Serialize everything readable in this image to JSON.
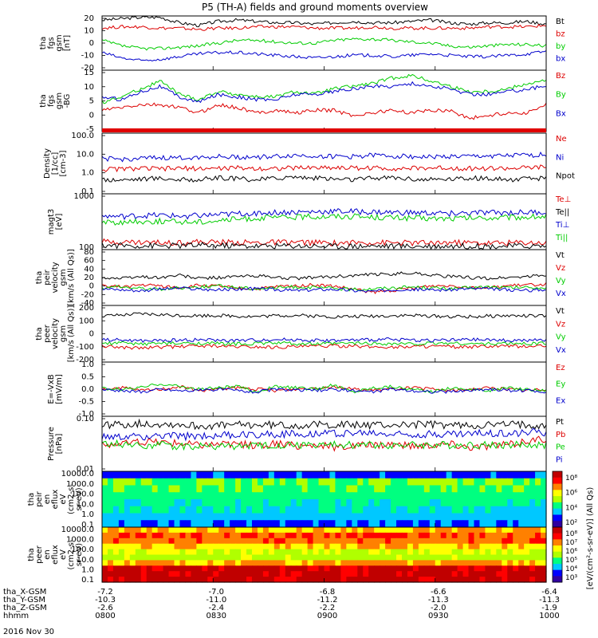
{
  "title": "P5 (TH-A) fields and ground moments overview",
  "date": "2016 Nov 30",
  "colors": {
    "black": "#000000",
    "red": "#dd0000",
    "green": "#00cc00",
    "blue": "#0000cc"
  },
  "chart_data": [
    {
      "type": "line",
      "ylabel": [
        "tha",
        "fgs",
        "gsm",
        "[nT]"
      ],
      "ylim": [
        -20,
        20
      ],
      "yticks": [
        "20",
        "10",
        "0",
        "-10",
        "-20"
      ],
      "series": [
        {
          "name": "Bt",
          "color": "black",
          "values": [
            17,
            18,
            19,
            19,
            15,
            13,
            16,
            17,
            16,
            15,
            15,
            14,
            15,
            16,
            15,
            15,
            16,
            17,
            15,
            14,
            15,
            15,
            16,
            14
          ]
        },
        {
          "name": "bz",
          "color": "red",
          "values": [
            11,
            12,
            12,
            11,
            11,
            10,
            11,
            11,
            12,
            12,
            12,
            11,
            11,
            11,
            12,
            11,
            11,
            11,
            11,
            11,
            12,
            12,
            12,
            13
          ]
        },
        {
          "name": "by",
          "color": "green",
          "values": [
            2,
            -2,
            -4,
            -4,
            -3,
            -2,
            0,
            2,
            2,
            1,
            0,
            0,
            2,
            3,
            3,
            2,
            1,
            0,
            -2,
            -3,
            -2,
            -1,
            -1,
            -2
          ]
        },
        {
          "name": "bx",
          "color": "blue",
          "values": [
            -7,
            -11,
            -13,
            -12,
            -10,
            -8,
            -7,
            -7,
            -8,
            -9,
            -10,
            -11,
            -10,
            -9,
            -9,
            -10,
            -9,
            -8,
            -9,
            -10,
            -10,
            -9,
            -8,
            -6
          ]
        }
      ]
    },
    {
      "type": "line",
      "ylabel": [
        "tha",
        "fgs",
        "gsm",
        "-BG"
      ],
      "ylim": [
        -7,
        16
      ],
      "yticks": [
        "15",
        "10",
        "5",
        "0",
        "-5"
      ],
      "series": [
        {
          "name": "Bz",
          "color": "red",
          "values": [
            1,
            2,
            3,
            3,
            2,
            0,
            3,
            2,
            0,
            1,
            0,
            1,
            1,
            -1,
            0,
            1,
            0,
            1,
            1,
            -2,
            -1,
            0,
            0,
            3
          ]
        },
        {
          "name": "By",
          "color": "green",
          "values": [
            4,
            6,
            9,
            12,
            7,
            5,
            8,
            7,
            6,
            6,
            8,
            7,
            9,
            10,
            11,
            13,
            14,
            12,
            10,
            8,
            8,
            9,
            11,
            12
          ]
        },
        {
          "name": "Bx",
          "color": "blue",
          "values": [
            6,
            5,
            8,
            10,
            6,
            4,
            7,
            6,
            5,
            5,
            7,
            7,
            8,
            9,
            10,
            10,
            11,
            10,
            9,
            7,
            7,
            8,
            9,
            10
          ]
        }
      ]
    },
    {
      "type": "line",
      "ylabel": [
        "Density",
        "[1/cc]",
        "[cm-3]"
      ],
      "ylim": [
        0.1,
        100
      ],
      "log": true,
      "yticks": [
        "100.0",
        "10.0",
        "1.0",
        "0.1"
      ],
      "series": [
        {
          "name": "Ne",
          "color": "red",
          "values": [
            1.6,
            1.7,
            1.8,
            1.7,
            1.8,
            1.8,
            1.8,
            1.9,
            1.8,
            1.8,
            1.9,
            2,
            2,
            1.9,
            1.9,
            1.8,
            1.8,
            1.9,
            1.9,
            1.8,
            1.8,
            1.8,
            1.9,
            2.1
          ]
        },
        {
          "name": "Ni",
          "color": "blue",
          "values": [
            5.5,
            5,
            5.5,
            6,
            6,
            6.5,
            7,
            6.5,
            6.5,
            7,
            8,
            7.5,
            7,
            7,
            8,
            7.5,
            7,
            6.5,
            7,
            7,
            7.5,
            7.5,
            8,
            9
          ]
        },
        {
          "name": "Npot",
          "color": "black",
          "values": [
            0.5,
            0.5,
            0.55,
            0.6,
            0.5,
            0.5,
            0.6,
            0.55,
            0.5,
            0.6,
            0.7,
            0.6,
            0.55,
            0.5,
            0.6,
            0.65,
            0.55,
            0.5,
            0.55,
            0.6,
            0.55,
            0.5,
            0.55,
            0.6
          ]
        }
      ]
    },
    {
      "type": "line",
      "ylabel": [
        "magt3",
        "[eV]"
      ],
      "ylim": [
        100,
        20000
      ],
      "log": true,
      "yticks": [
        "1000",
        "100"
      ],
      "series": [
        {
          "name": "Te⊥",
          "color": "red",
          "values": [
            210,
            205,
            200,
            195,
            200,
            205,
            200,
            195,
            190,
            195,
            200,
            190,
            185,
            190,
            195,
            190,
            185,
            190,
            195,
            190,
            185,
            190,
            195,
            190
          ]
        },
        {
          "name": "Te||",
          "color": "black",
          "values": [
            150,
            148,
            145,
            142,
            145,
            150,
            148,
            145,
            140,
            142,
            145,
            140,
            138,
            140,
            142,
            140,
            138,
            140,
            142,
            140,
            138,
            140,
            142,
            140
          ]
        },
        {
          "name": "Ti⊥",
          "color": "blue",
          "values": [
            2400,
            2300,
            2500,
            2600,
            2400,
            2500,
            2700,
            3000,
            3200,
            3400,
            3500,
            3600,
            3800,
            3700,
            3500,
            3400,
            3300,
            3200,
            3100,
            3200,
            3300,
            3300,
            3400,
            3500
          ]
        },
        {
          "name": "Ti||",
          "color": "green",
          "values": [
            1400,
            1300,
            1400,
            1500,
            1400,
            1400,
            1600,
            1800,
            2000,
            2100,
            2200,
            2300,
            2400,
            2300,
            2200,
            2100,
            2000,
            1900,
            1900,
            2000,
            2000,
            2100,
            2200,
            2300
          ]
        }
      ]
    },
    {
      "type": "line",
      "ylabel": [
        "tha",
        "peir",
        "velocity",
        "gsm",
        "[km/s (All Qs)]"
      ],
      "ylim": [
        -40,
        80
      ],
      "yticks": [
        "80",
        "60",
        "40",
        "20",
        "0",
        "-20",
        "-40"
      ],
      "series": [
        {
          "name": "Vt",
          "color": "black",
          "values": [
            20,
            18,
            22,
            20,
            25,
            18,
            20,
            22,
            24,
            20,
            18,
            20,
            22,
            24,
            26,
            28,
            30,
            26,
            22,
            20,
            18,
            20,
            22,
            25
          ]
        },
        {
          "name": "Vz",
          "color": "red",
          "values": [
            2,
            0,
            4,
            2,
            -2,
            3,
            1,
            -3,
            -5,
            0,
            2,
            4,
            1,
            -5,
            -12,
            -8,
            -3,
            2,
            3,
            0,
            -2,
            2,
            4,
            6
          ]
        },
        {
          "name": "Vy",
          "color": "green",
          "values": [
            -2,
            0,
            -3,
            -5,
            -2,
            0,
            2,
            -1,
            -4,
            -2,
            0,
            -2,
            -3,
            -6,
            -4,
            -2,
            0,
            -2,
            -4,
            -2,
            0,
            -2,
            -1,
            -3
          ]
        },
        {
          "name": "Vx",
          "color": "blue",
          "values": [
            -4,
            -6,
            -8,
            -5,
            -3,
            -5,
            -7,
            -5,
            -4,
            -6,
            -8,
            -6,
            -5,
            -8,
            -10,
            -6,
            -5,
            -7,
            -6,
            -4,
            -5,
            -6,
            -8,
            -5
          ]
        }
      ]
    },
    {
      "type": "line",
      "ylabel": [
        "tha",
        "peer",
        "velocity",
        "gsm",
        "[km/s (All Qs)]"
      ],
      "ylim": [
        -200,
        200
      ],
      "yticks": [
        "200",
        "100",
        "0",
        "-100",
        "-200"
      ],
      "series": [
        {
          "name": "Vt",
          "color": "black",
          "values": [
            125,
            130,
            140,
            135,
            130,
            128,
            130,
            125,
            122,
            128,
            130,
            125,
            120,
            122,
            125,
            128,
            130,
            126,
            122,
            120,
            125,
            128,
            126,
            125
          ]
        },
        {
          "name": "Vz",
          "color": "red",
          "values": [
            -90,
            -95,
            -100,
            -95,
            -90,
            -85,
            -88,
            -90,
            -92,
            -95,
            -90,
            -88,
            -85,
            -90,
            -92,
            -95,
            -90,
            -88,
            -92,
            -95,
            -90,
            -88,
            -90,
            -85
          ]
        },
        {
          "name": "Vy",
          "color": "green",
          "values": [
            -70,
            -65,
            -72,
            -68,
            -70,
            -66,
            -70,
            -72,
            -68,
            -65,
            -70,
            -72,
            -70,
            -66,
            -68,
            -70,
            -72,
            -68,
            -66,
            -70,
            -72,
            -68,
            -70,
            -66
          ]
        },
        {
          "name": "Vx",
          "color": "blue",
          "values": [
            -40,
            -45,
            -50,
            -48,
            -45,
            -42,
            -46,
            -48,
            -44,
            -40,
            -42,
            -46,
            -48,
            -45,
            -42,
            -40,
            -44,
            -46,
            -45,
            -42,
            -44,
            -46,
            -48,
            -45
          ]
        }
      ]
    },
    {
      "type": "line",
      "ylabel": [
        "E=-VxB",
        "[mV/m]"
      ],
      "ylim": [
        -1,
        1
      ],
      "yticks": [
        "1.0",
        "0.5",
        "0.0",
        "-0.5",
        "-1.0"
      ],
      "series": [
        {
          "name": "Ez",
          "color": "red",
          "values": [
            0,
            0.05,
            -0.05,
            0,
            0.1,
            -0.05,
            0,
            0.05,
            0,
            -0.05,
            0,
            0.05,
            0.1,
            0,
            -0.05,
            0,
            0.05,
            0,
            -0.05,
            0,
            0.05,
            0,
            -0.05,
            0
          ]
        },
        {
          "name": "Ey",
          "color": "green",
          "values": [
            0.02,
            0,
            0.05,
            0.2,
            0.1,
            0,
            0.05,
            0.1,
            -0.1,
            0.1,
            0.05,
            0,
            0.15,
            -0.1,
            0.05,
            0.1,
            0,
            -0.1,
            0.05,
            0,
            -0.05,
            0.05,
            0,
            -0.05
          ]
        },
        {
          "name": "Ex",
          "color": "blue",
          "values": [
            0,
            -0.05,
            -0.1,
            0,
            -0.05,
            -0.05,
            0,
            -0.05,
            -0.1,
            0,
            -0.05,
            -0.05,
            0,
            -0.05,
            -0.1,
            0,
            -0.05,
            -0.1,
            -0.1,
            -0.05,
            0,
            -0.05,
            -0.05,
            -0.1
          ]
        }
      ]
    },
    {
      "type": "line",
      "ylabel": [
        "Pressure",
        "[nPa]"
      ],
      "ylim": [
        0.01,
        0.5
      ],
      "log": true,
      "yticks": [
        "0.10",
        "0.01"
      ],
      "series": [
        {
          "name": "Pt",
          "color": "black",
          "values": [
            0.27,
            0.28,
            0.3,
            0.29,
            0.28,
            0.25,
            0.26,
            0.27,
            0.27,
            0.27,
            0.26,
            0.27,
            0.28,
            0.27,
            0.27,
            0.27,
            0.28,
            0.28,
            0.27,
            0.26,
            0.27,
            0.28,
            0.28,
            0.27
          ]
        },
        {
          "name": "Pb",
          "color": "red",
          "values": [
            0.065,
            0.07,
            0.08,
            0.08,
            0.075,
            0.065,
            0.07,
            0.07,
            0.06,
            0.07,
            0.06,
            0.065,
            0.055,
            0.06,
            0.065,
            0.07,
            0.06,
            0.065,
            0.07,
            0.055,
            0.06,
            0.065,
            0.085,
            0.1
          ]
        },
        {
          "name": "Pe",
          "color": "green",
          "values": [
            0.07,
            0.07,
            0.065,
            0.065,
            0.06,
            0.06,
            0.06,
            0.06,
            0.06,
            0.065,
            0.065,
            0.065,
            0.065,
            0.065,
            0.065,
            0.065,
            0.065,
            0.065,
            0.065,
            0.065,
            0.065,
            0.065,
            0.065,
            0.065
          ]
        },
        {
          "name": "Pi",
          "color": "blue",
          "values": [
            0.11,
            0.11,
            0.12,
            0.12,
            0.12,
            0.12,
            0.13,
            0.13,
            0.14,
            0.14,
            0.14,
            0.15,
            0.15,
            0.15,
            0.15,
            0.14,
            0.14,
            0.14,
            0.14,
            0.14,
            0.15,
            0.15,
            0.16,
            0.16
          ]
        }
      ]
    },
    {
      "type": "heatmap",
      "ylabel": [
        "tha",
        "peir",
        "en",
        "eflux",
        "eV",
        "(cm2-s-",
        "sr-eV)"
      ],
      "yticks": [
        "10000.0",
        "1000.0",
        "100.0",
        "10.0",
        "1.0",
        "0.1"
      ],
      "levels": [
        0.1,
        0.45,
        0.42,
        0.38,
        0.32,
        0.28,
        0.22,
        0.15
      ],
      "colorbar_ticks": [
        "10⁸",
        "10⁶",
        "10⁴",
        "10²"
      ]
    },
    {
      "type": "heatmap",
      "ylabel": [
        "tha",
        "peer",
        "en",
        "eflux",
        "eV",
        "(cm2-s-",
        "sr-eV)"
      ],
      "yticks": [
        "10000.0",
        "1000.0",
        "100.0",
        "10.0",
        "1.0",
        "0.1"
      ],
      "levels": [
        0.72,
        0.85,
        0.82,
        0.7,
        0.6,
        0.55,
        0.75,
        0.98,
        0.98,
        0.98
      ],
      "colorbar_ticks": [
        "10⁸",
        "10⁷",
        "10⁶",
        "10⁵",
        "10⁴",
        "10³"
      ]
    }
  ],
  "colorbar_label": "[eV/(cm²-s-sr-eV)] (All Qs)",
  "x_axis": {
    "row_labels": [
      "tha_X-GSM",
      "tha_Y-GSM",
      "tha_Z-GSM",
      "hhmm"
    ],
    "ticks": [
      {
        "values": [
          "-7.2",
          "-10.3",
          "-2.6",
          "0800"
        ]
      },
      {
        "values": [
          "-7.0",
          "-11.0",
          "-2.4",
          "0830"
        ]
      },
      {
        "values": [
          "-6.8",
          "-11.2",
          "-2.2",
          "0900"
        ]
      },
      {
        "values": [
          "-6.6",
          "-11.3",
          "-2.0",
          "0930"
        ]
      },
      {
        "values": [
          "-6.4",
          "-11.3",
          "-1.9",
          "1000"
        ]
      }
    ]
  }
}
